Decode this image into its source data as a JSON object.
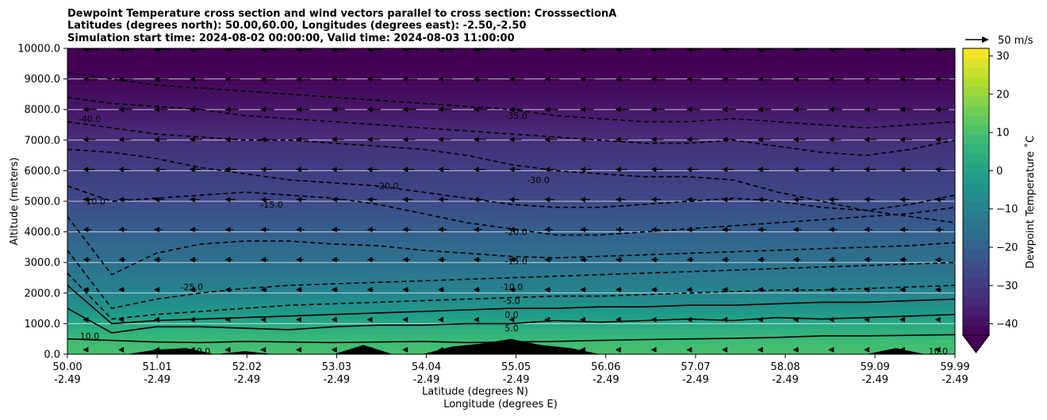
{
  "chart_data": {
    "type": "heatmap",
    "title_lines": [
      "Dewpoint Temperature cross section and wind vectors parallel to cross section: CrosssectionA",
      "Latitudes (degrees north): 50.00,60.00, Longitudes (degrees east): -2.50,-2.50",
      "Simulation start time: 2024-08-02 00:00:00, Valid time: 2024-08-03 11:00:00"
    ],
    "xlabel": "Latitude (degrees N)",
    "xlabel2": "Longitude (degrees E)",
    "ylabel": "Altitude (meters)",
    "xlim": [
      50.0,
      59.99
    ],
    "ylim": [
      0,
      10000
    ],
    "x_ticks": [
      {
        "lat": "50.00",
        "lon": "-2.49",
        "value": 50.0
      },
      {
        "lat": "51.01",
        "lon": "-2.49",
        "value": 51.01
      },
      {
        "lat": "52.02",
        "lon": "-2.49",
        "value": 52.02
      },
      {
        "lat": "53.03",
        "lon": "-2.49",
        "value": 53.03
      },
      {
        "lat": "54.04",
        "lon": "-2.49",
        "value": 54.04
      },
      {
        "lat": "55.05",
        "lon": "-2.49",
        "value": 55.05
      },
      {
        "lat": "56.06",
        "lon": "-2.49",
        "value": 56.06
      },
      {
        "lat": "57.07",
        "lon": "-2.49",
        "value": 57.07
      },
      {
        "lat": "58.08",
        "lon": "-2.49",
        "value": 58.08
      },
      {
        "lat": "59.09",
        "lon": "-2.49",
        "value": 59.09
      },
      {
        "lat": "59.99",
        "lon": "-2.49",
        "value": 59.99
      }
    ],
    "y_ticks": [
      {
        "label": "0.0",
        "value": 0
      },
      {
        "label": "1000.0",
        "value": 1000
      },
      {
        "label": "2000.0",
        "value": 2000
      },
      {
        "label": "3000.0",
        "value": 3000
      },
      {
        "label": "4000.0",
        "value": 4000
      },
      {
        "label": "5000.0",
        "value": 5000
      },
      {
        "label": "6000.0",
        "value": 6000
      },
      {
        "label": "7000.0",
        "value": 7000
      },
      {
        "label": "8000.0",
        "value": 8000
      },
      {
        "label": "9000.0",
        "value": 9000
      },
      {
        "label": "10000.0",
        "value": 10000
      }
    ],
    "grid": "horizontal",
    "colorbar": {
      "label": "Dewpoint Temperature ˚C",
      "range": [
        -43,
        32
      ],
      "ticks": [
        -40,
        -30,
        -20,
        -10,
        0,
        10,
        20,
        30
      ],
      "tick_labels": [
        "−40",
        "−30",
        "−20",
        "−10",
        "0",
        "10",
        "20",
        "30"
      ],
      "extend": "min",
      "colormap": "viridis",
      "colors": [
        "#440154",
        "#482878",
        "#3e4989",
        "#31688e",
        "#26828e",
        "#1f9e89",
        "#35b779",
        "#6ece58",
        "#b5de2b",
        "#fde725"
      ]
    },
    "dewpoint_profile": [
      {
        "altitude": 0,
        "value": 10
      },
      {
        "altitude": 500,
        "value": 8
      },
      {
        "altitude": 1000,
        "value": 2
      },
      {
        "altitude": 1500,
        "value": -4
      },
      {
        "altitude": 2000,
        "value": -9
      },
      {
        "altitude": 3000,
        "value": -15
      },
      {
        "altitude": 4000,
        "value": -20
      },
      {
        "altitude": 5000,
        "value": -26
      },
      {
        "altitude": 6000,
        "value": -29
      },
      {
        "altitude": 7000,
        "value": -33
      },
      {
        "altitude": 8000,
        "value": -38
      },
      {
        "altitude": 9000,
        "value": -42
      },
      {
        "altitude": 10000,
        "value": -44
      }
    ],
    "contours": [
      {
        "level": 10,
        "altitudes": [
          500,
          450,
          400,
          380,
          420,
          400,
          380,
          400,
          420,
          380,
          400,
          420,
          450,
          480,
          500,
          520,
          550,
          600,
          600,
          620,
          640
        ]
      },
      {
        "level": 5,
        "altitudes": [
          1500,
          700,
          900,
          900,
          850,
          800,
          900,
          950,
          950,
          1000,
          1000,
          1100,
          1050,
          1100,
          1150,
          1100,
          1200,
          1150,
          1200,
          1250,
          1300
        ]
      },
      {
        "level": 0,
        "altitudes": [
          2250,
          1000,
          1100,
          1150,
          1200,
          1250,
          1300,
          1350,
          1400,
          1450,
          1500,
          1500,
          1550,
          1550,
          1600,
          1600,
          1650,
          1700,
          1700,
          1750,
          1800
        ]
      },
      {
        "level": -5,
        "altitudes": [
          2650,
          1150,
          1300,
          1400,
          1500,
          1600,
          1650,
          1700,
          1750,
          1800,
          1850,
          1900,
          1900,
          1950,
          2000,
          2050,
          2100,
          2100,
          2150,
          2200,
          2250
        ]
      },
      {
        "level": -10,
        "altitudes": [
          3400,
          1500,
          1800,
          2000,
          2150,
          2250,
          2300,
          2350,
          2400,
          2450,
          2500,
          2550,
          2600,
          2650,
          2700,
          2750,
          2800,
          2850,
          2900,
          2950,
          3000
        ]
      },
      {
        "level": -15,
        "altitudes": [
          4500,
          2600,
          3300,
          3600,
          3700,
          3700,
          3600,
          3550,
          3400,
          3300,
          3200,
          3150,
          3200,
          3250,
          3300,
          3350,
          3400,
          3450,
          3500,
          3550,
          3650
        ]
      },
      {
        "level": -20,
        "altitudes": [
          5500,
          5000,
          5100,
          5200,
          5300,
          5200,
          5100,
          4900,
          4600,
          4300,
          4100,
          3900,
          3900,
          4000,
          4100,
          4200,
          4300,
          4400,
          4500,
          4600,
          4800
        ]
      },
      {
        "level": -25,
        "altitudes": [
          6700,
          6600,
          6400,
          6100,
          5900,
          5700,
          5600,
          5500,
          5300,
          5100,
          4900,
          4800,
          4800,
          4900,
          5000,
          5100,
          5000,
          4800,
          4700,
          4900,
          5200
        ]
      },
      {
        "level": -30,
        "altitudes": [
          7600,
          7400,
          7200,
          7100,
          7000,
          7000,
          6900,
          6800,
          6700,
          6500,
          6200,
          6000,
          5900,
          5800,
          5800,
          5700,
          5300,
          5000,
          4700,
          4500,
          4300
        ]
      },
      {
        "level": -35,
        "altitudes": [
          8400,
          8200,
          8100,
          8000,
          7800,
          7700,
          7600,
          7500,
          7400,
          7300,
          7200,
          7100,
          7000,
          6900,
          6900,
          7000,
          6800,
          6600,
          6500,
          6700,
          7000
        ]
      },
      {
        "level": -40,
        "altitudes": [
          9200,
          9000,
          8800,
          8700,
          8600,
          8500,
          8400,
          8300,
          8200,
          8100,
          8000,
          7800,
          7700,
          7600,
          7600,
          7700,
          7600,
          7500,
          7400,
          7500,
          7600
        ]
      }
    ],
    "contour_labels": [
      {
        "text": "-40.0",
        "lat": 50.25,
        "alt": 7700
      },
      {
        "text": "-35.0",
        "lat": 55.05,
        "alt": 7800
      },
      {
        "text": "-30.0",
        "lat": 55.3,
        "alt": 5700
      },
      {
        "text": "-20.0",
        "lat": 55.05,
        "alt": 4000
      },
      {
        "text": "-15.0",
        "lat": 55.05,
        "alt": 3050
      },
      {
        "text": "-10.0",
        "lat": 55.0,
        "alt": 2200
      },
      {
        "text": "-5.0",
        "lat": 55.0,
        "alt": 1750
      },
      {
        "text": "0.0",
        "lat": 55.0,
        "alt": 1300
      },
      {
        "text": "5.0",
        "lat": 55.0,
        "alt": 850
      },
      {
        "text": "10.0",
        "lat": 50.25,
        "alt": 600
      },
      {
        "text": "-10.0",
        "lat": 50.3,
        "alt": 5000
      },
      {
        "text": "-15.0",
        "lat": 52.3,
        "alt": 4900
      },
      {
        "text": "-20.0",
        "lat": 53.6,
        "alt": 5500
      },
      {
        "text": "-25.0",
        "lat": 51.4,
        "alt": 2200
      },
      {
        "text": "10.0",
        "lat": 51.5,
        "alt": 100
      },
      {
        "text": "10.0",
        "lat": 59.8,
        "alt": 100
      }
    ],
    "terrain": [
      0,
      0,
      0,
      150,
      200,
      0,
      100,
      0,
      0,
      0,
      300,
      0,
      0,
      250,
      350,
      500,
      300,
      200,
      0,
      0,
      0,
      0,
      0,
      0,
      0,
      0,
      0,
      0,
      200,
      0,
      0
    ],
    "wind": {
      "reference_label": "50 m/s",
      "reference_speed": 50,
      "direction": "toward decreasing latitude",
      "profile": [
        {
          "altitude": 0,
          "speed": 0
        },
        {
          "altitude": 2000,
          "speed": 4
        },
        {
          "altitude": 4000,
          "speed": 6
        },
        {
          "altitude": 6000,
          "speed": 9
        },
        {
          "altitude": 8000,
          "speed": 11
        },
        {
          "altitude": 10000,
          "speed": 13
        }
      ]
    }
  }
}
